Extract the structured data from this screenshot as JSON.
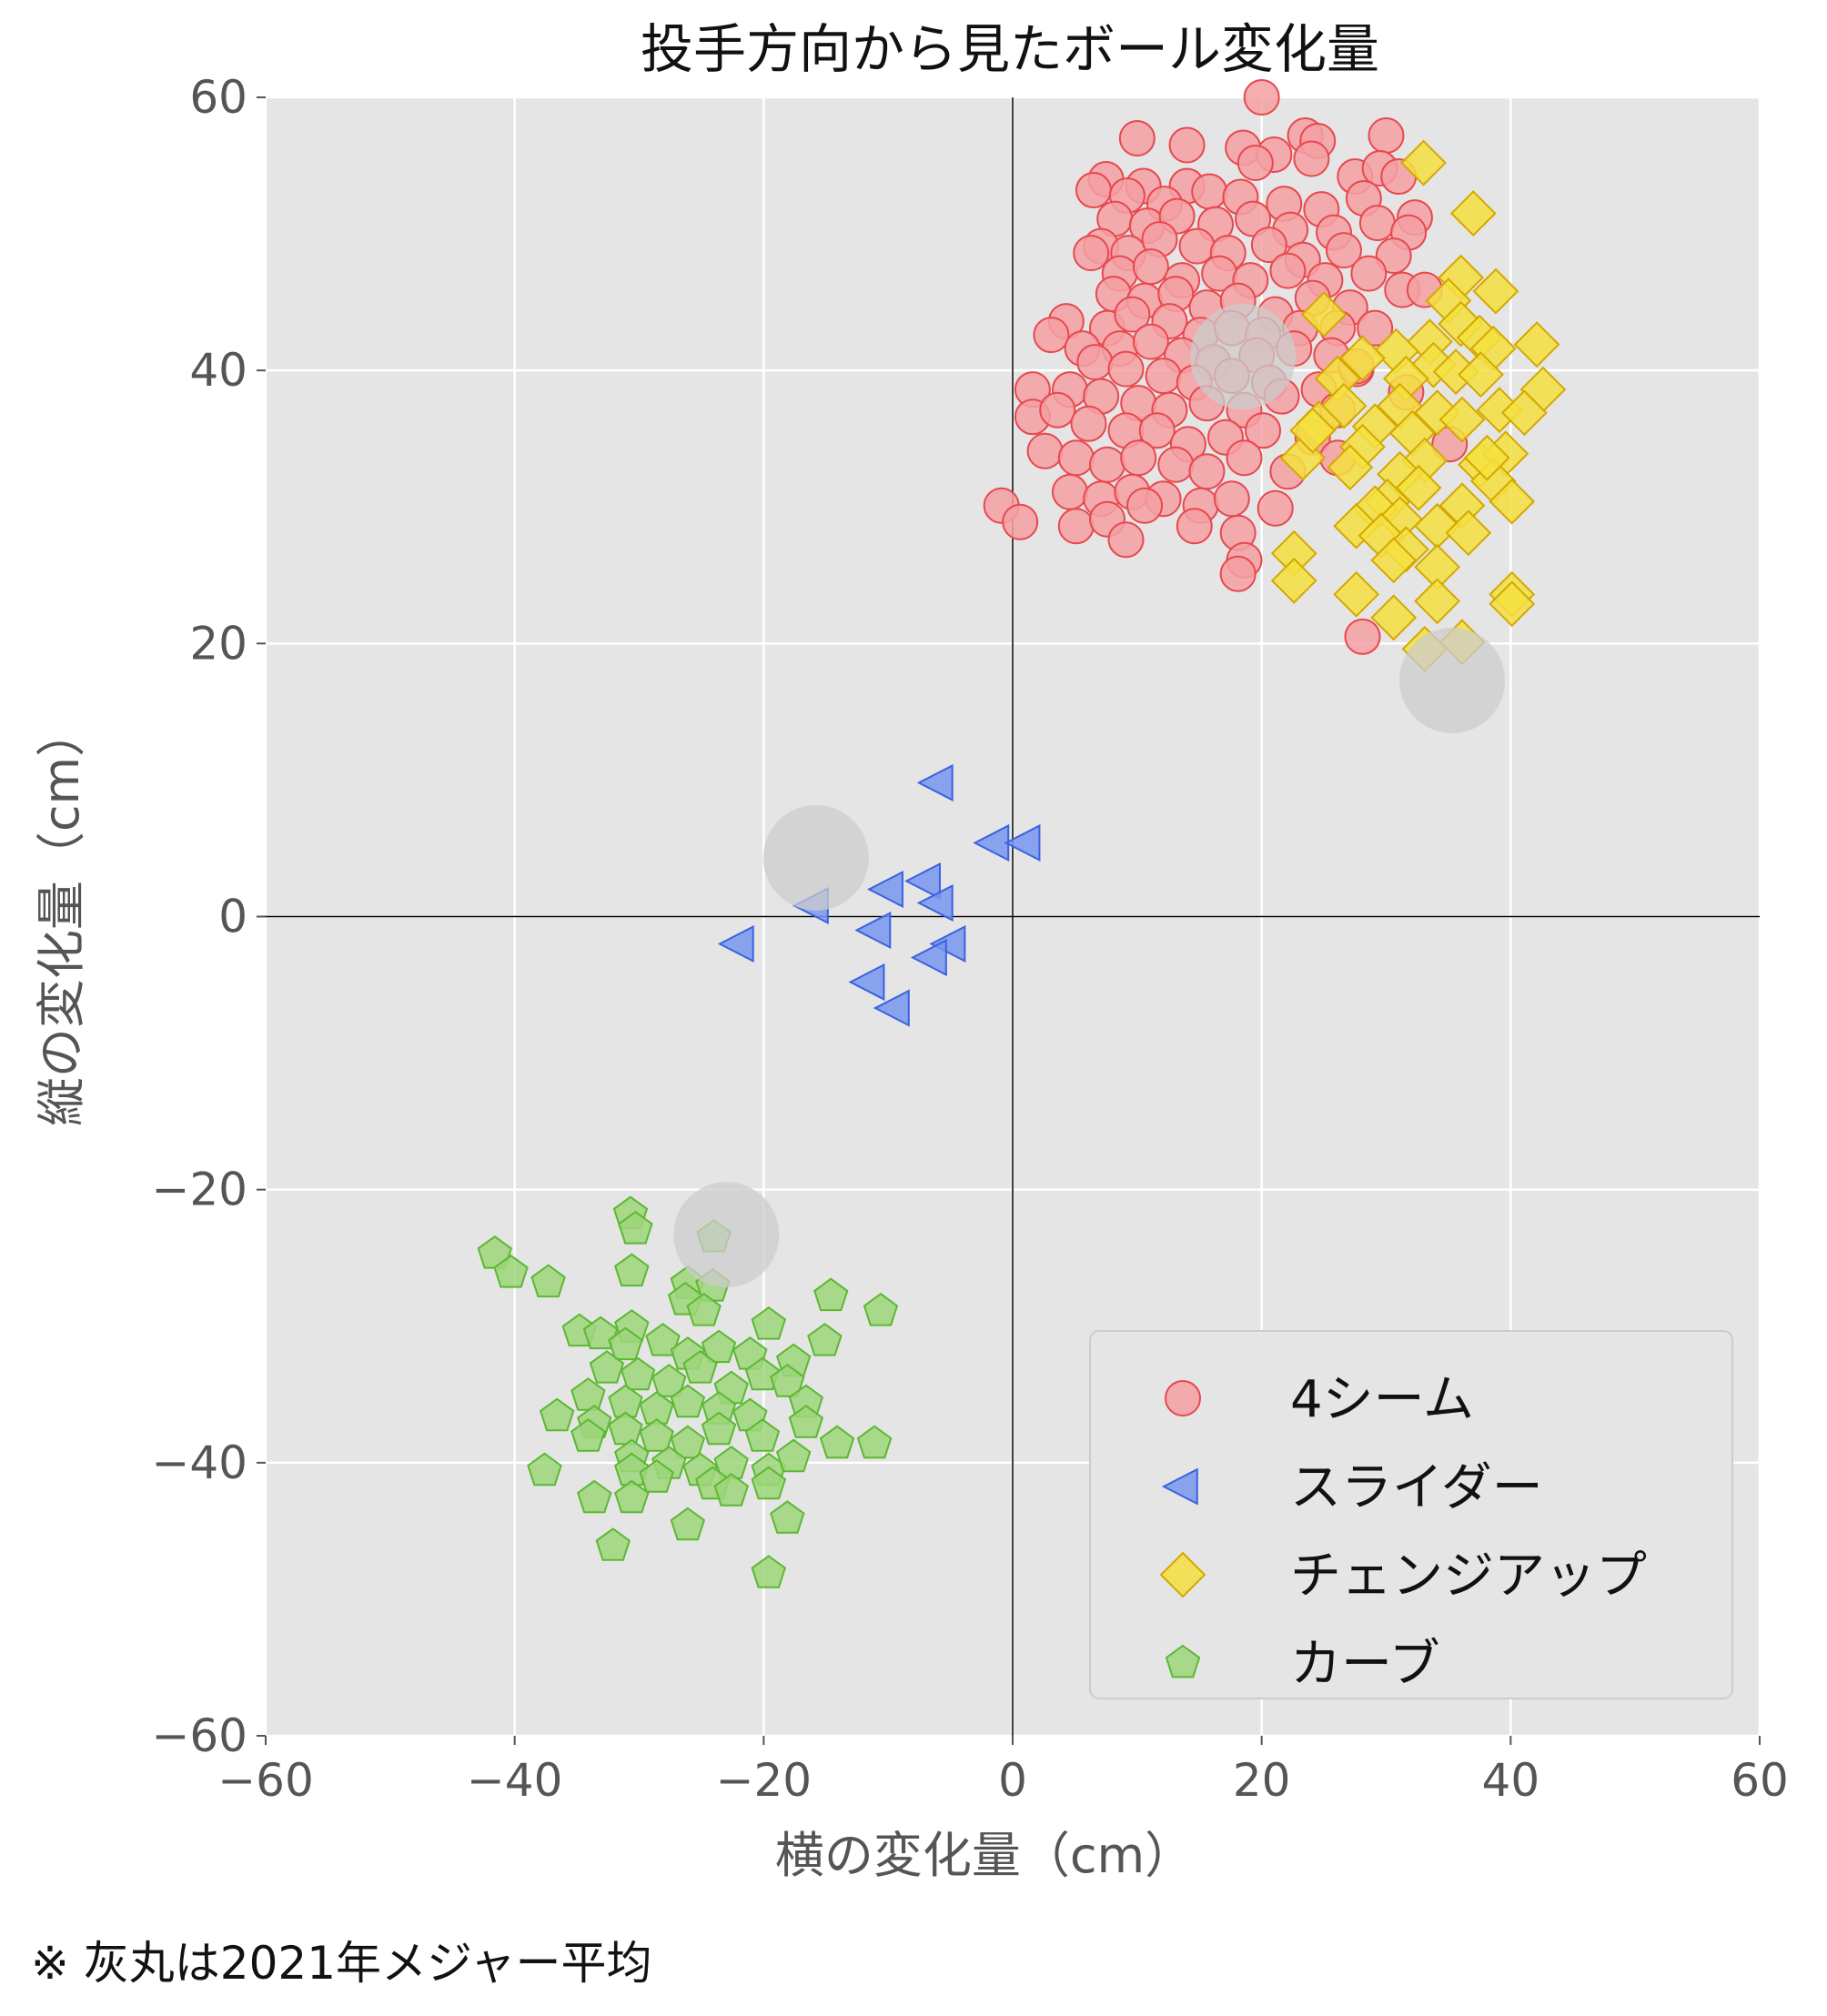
{
  "chart_data": {
    "type": "scatter",
    "title": "投手方向から見たボール変化量",
    "xlabel": "横の変化量（cm）",
    "ylabel": "縦の変化量（cm）",
    "xlim": [
      -60,
      60
    ],
    "ylim": [
      -60,
      60
    ],
    "xticks": [
      -60,
      -40,
      -20,
      0,
      20,
      40,
      60
    ],
    "yticks": [
      -60,
      -40,
      -20,
      0,
      20,
      40,
      60
    ],
    "xtick_labels": [
      "−60",
      "−40",
      "−20",
      "0",
      "20",
      "40",
      "60"
    ],
    "ytick_labels": [
      "−60",
      "−40",
      "−20",
      "0",
      "20",
      "40",
      "60"
    ],
    "grid": true,
    "background": "#e5e5e5",
    "legend_position": "lower-right",
    "series": [
      {
        "name": "4シーム",
        "marker": "circle",
        "fill": "#f4a0a3",
        "stroke": "#e8484e",
        "points": [
          [
            20,
            60
          ],
          [
            10,
            57
          ],
          [
            14,
            56.5
          ],
          [
            18.5,
            56.3
          ],
          [
            21,
            55.8
          ],
          [
            23.5,
            57.2
          ],
          [
            24.5,
            56.8
          ],
          [
            30,
            57.2
          ],
          [
            7.5,
            54
          ],
          [
            10.5,
            53.5
          ],
          [
            14,
            53.5
          ],
          [
            19.5,
            55.2
          ],
          [
            24,
            55.5
          ],
          [
            27.5,
            54.2
          ],
          [
            29.5,
            54.8
          ],
          [
            31,
            54.2
          ],
          [
            6.5,
            53.2
          ],
          [
            9.2,
            52.8
          ],
          [
            12.2,
            52.2
          ],
          [
            15.8,
            53.1
          ],
          [
            18.3,
            52.7
          ],
          [
            21.8,
            52.2
          ],
          [
            24.8,
            51.8
          ],
          [
            28.2,
            52.6
          ],
          [
            32.3,
            51.2
          ],
          [
            8.2,
            51.1
          ],
          [
            10.8,
            50.6
          ],
          [
            13.2,
            51.3
          ],
          [
            16.3,
            50.7
          ],
          [
            19.3,
            51.1
          ],
          [
            22.3,
            50.3
          ],
          [
            25.8,
            50.1
          ],
          [
            29.3,
            50.8
          ],
          [
            31.8,
            50.1
          ],
          [
            7.1,
            49.1
          ],
          [
            9.3,
            48.6
          ],
          [
            11.8,
            49.6
          ],
          [
            14.8,
            49.1
          ],
          [
            17.3,
            48.6
          ],
          [
            20.6,
            49.2
          ],
          [
            23.3,
            48.1
          ],
          [
            26.6,
            48.8
          ],
          [
            30.6,
            48.4
          ],
          [
            6.3,
            48.6
          ],
          [
            8.6,
            47.1
          ],
          [
            11.1,
            47.6
          ],
          [
            13.6,
            46.6
          ],
          [
            16.6,
            47.1
          ],
          [
            19.1,
            46.6
          ],
          [
            22.1,
            47.3
          ],
          [
            25.1,
            46.6
          ],
          [
            28.6,
            47.1
          ],
          [
            8.1,
            45.6
          ],
          [
            10.6,
            45.1
          ],
          [
            13.1,
            45.6
          ],
          [
            15.6,
            44.6
          ],
          [
            18.1,
            45.1
          ],
          [
            21.1,
            44.1
          ],
          [
            24.1,
            45.3
          ],
          [
            27.1,
            44.6
          ],
          [
            31.3,
            45.9
          ],
          [
            4.3,
            43.6
          ],
          [
            7.6,
            43.1
          ],
          [
            9.6,
            44.1
          ],
          [
            12.6,
            43.6
          ],
          [
            15.1,
            42.6
          ],
          [
            17.6,
            43.1
          ],
          [
            20.1,
            42.6
          ],
          [
            23.1,
            43.1
          ],
          [
            26.1,
            43.1
          ],
          [
            3.1,
            42.6
          ],
          [
            5.6,
            41.6
          ],
          [
            8.6,
            41.6
          ],
          [
            11.1,
            42.1
          ],
          [
            13.6,
            41.1
          ],
          [
            16.1,
            40.6
          ],
          [
            19.6,
            41.1
          ],
          [
            22.6,
            41.6
          ],
          [
            25.6,
            41.1
          ],
          [
            6.6,
            40.6
          ],
          [
            9.1,
            40.1
          ],
          [
            12.1,
            39.6
          ],
          [
            14.6,
            39.1
          ],
          [
            17.6,
            39.6
          ],
          [
            20.6,
            39.1
          ],
          [
            24.6,
            38.6
          ],
          [
            27.6,
            40.1
          ],
          [
            31.6,
            38.4
          ],
          [
            1.6,
            38.6
          ],
          [
            4.6,
            38.6
          ],
          [
            7.1,
            38.1
          ],
          [
            10.1,
            37.6
          ],
          [
            12.6,
            37.1
          ],
          [
            15.6,
            37.6
          ],
          [
            18.6,
            37.1
          ],
          [
            21.6,
            38.1
          ],
          [
            26.1,
            37.1
          ],
          [
            1.6,
            36.6
          ],
          [
            3.6,
            37.1
          ],
          [
            6.1,
            36.1
          ],
          [
            9.1,
            35.6
          ],
          [
            11.6,
            35.6
          ],
          [
            14.1,
            34.6
          ],
          [
            17.1,
            35.1
          ],
          [
            20.1,
            35.6
          ],
          [
            24.1,
            35.1
          ],
          [
            2.6,
            34.1
          ],
          [
            5.1,
            33.6
          ],
          [
            7.6,
            33.1
          ],
          [
            10.1,
            33.6
          ],
          [
            13.1,
            33.1
          ],
          [
            15.6,
            32.6
          ],
          [
            18.6,
            33.6
          ],
          [
            22.1,
            32.6
          ],
          [
            35.1,
            34.6
          ],
          [
            4.6,
            31.1
          ],
          [
            7.1,
            30.6
          ],
          [
            9.6,
            31.1
          ],
          [
            12.1,
            30.6
          ],
          [
            15.1,
            30.1
          ],
          [
            17.6,
            30.6
          ],
          [
            21.1,
            29.9
          ],
          [
            -0.9,
            30.1
          ],
          [
            0.6,
            28.9
          ],
          [
            5.1,
            28.6
          ],
          [
            7.6,
            29.1
          ],
          [
            9.1,
            27.6
          ],
          [
            10.6,
            30.1
          ],
          [
            14.6,
            28.6
          ],
          [
            18.1,
            28.1
          ],
          [
            18.6,
            26.1
          ],
          [
            18.1,
            25.1
          ],
          [
            28.1,
            20.5
          ],
          [
            27.6,
            40.3
          ],
          [
            26.1,
            33.6
          ],
          [
            33.1,
            45.9
          ],
          [
            29.1,
            43.1
          ]
        ]
      },
      {
        "name": "スライダー",
        "marker": "triangle-left",
        "fill": "#7896f0",
        "stroke": "#3a62e0",
        "points": [
          [
            -6,
            9.8
          ],
          [
            -1.5,
            5.4
          ],
          [
            1,
            5.4
          ],
          [
            -7,
            2.6
          ],
          [
            -10,
            2
          ],
          [
            -6,
            1
          ],
          [
            -16,
            0.8
          ],
          [
            -11,
            -1
          ],
          [
            -22,
            -2
          ],
          [
            -5,
            -2
          ],
          [
            -6.5,
            -3
          ],
          [
            -11.5,
            -4.8
          ],
          [
            -9.5,
            -6.7
          ]
        ]
      },
      {
        "name": "チェンジアップ",
        "marker": "diamond",
        "fill": "#f5e040",
        "stroke": "#d4a800",
        "points": [
          [
            33,
            55.2
          ],
          [
            37,
            51.5
          ],
          [
            36,
            46.8
          ],
          [
            38.8,
            45.8
          ],
          [
            35,
            45.1
          ],
          [
            25,
            44.1
          ],
          [
            36,
            43.4
          ],
          [
            37.5,
            42.4
          ],
          [
            33.5,
            42.1
          ],
          [
            38.6,
            41.6
          ],
          [
            42.1,
            41.9
          ],
          [
            30.8,
            41.4
          ],
          [
            33.8,
            40.4
          ],
          [
            35.6,
            39.9
          ],
          [
            28.1,
            40.9
          ],
          [
            31.6,
            39.4
          ],
          [
            26.1,
            39.4
          ],
          [
            37.6,
            39.7
          ],
          [
            42.6,
            38.6
          ],
          [
            31.1,
            37.4
          ],
          [
            26.6,
            37.4
          ],
          [
            34.1,
            36.9
          ],
          [
            36.1,
            36.4
          ],
          [
            39.1,
            37.1
          ],
          [
            41.1,
            36.9
          ],
          [
            24.6,
            36.1
          ],
          [
            29.1,
            35.9
          ],
          [
            32.1,
            35.4
          ],
          [
            28.1,
            34.4
          ],
          [
            33.1,
            33.4
          ],
          [
            37.6,
            33.1
          ],
          [
            39.6,
            33.9
          ],
          [
            31.1,
            32.4
          ],
          [
            27.1,
            32.9
          ],
          [
            38.6,
            31.9
          ],
          [
            32.6,
            31.4
          ],
          [
            30.1,
            30.4
          ],
          [
            36.1,
            30.1
          ],
          [
            29.1,
            29.9
          ],
          [
            40.1,
            30.4
          ],
          [
            31.1,
            29.1
          ],
          [
            34.1,
            28.6
          ],
          [
            36.6,
            28.1
          ],
          [
            27.6,
            28.6
          ],
          [
            29.6,
            27.9
          ],
          [
            31.6,
            26.9
          ],
          [
            22.6,
            26.6
          ],
          [
            30.6,
            26.1
          ],
          [
            34.1,
            25.6
          ],
          [
            22.6,
            24.6
          ],
          [
            27.6,
            23.6
          ],
          [
            34.1,
            23.1
          ],
          [
            40.1,
            23.6
          ],
          [
            40.1,
            22.9
          ],
          [
            30.6,
            21.9
          ],
          [
            33.1,
            19.6
          ],
          [
            36.1,
            20.1
          ],
          [
            23.3,
            33.6
          ],
          [
            24.1,
            35.6
          ],
          [
            38.1,
            33.6
          ]
        ]
      },
      {
        "name": "カーブ",
        "marker": "pentagon",
        "fill": "#9ed67a",
        "stroke": "#5cb832",
        "points": [
          [
            -30.7,
            -21.8
          ],
          [
            -30.3,
            -22.9
          ],
          [
            -24,
            -23.5
          ],
          [
            -41.6,
            -24.7
          ],
          [
            -40.3,
            -26.1
          ],
          [
            -30.6,
            -26
          ],
          [
            -37.3,
            -26.8
          ],
          [
            -26.1,
            -26.9
          ],
          [
            -24.1,
            -27.1
          ],
          [
            -26.3,
            -28.1
          ],
          [
            -14.6,
            -27.8
          ],
          [
            -24.8,
            -28.9
          ],
          [
            -10.6,
            -28.9
          ],
          [
            -30.6,
            -30.1
          ],
          [
            -19.6,
            -29.9
          ],
          [
            -34.8,
            -30.4
          ],
          [
            -33.1,
            -30.6
          ],
          [
            -31.1,
            -31.4
          ],
          [
            -28.1,
            -31.1
          ],
          [
            -26.1,
            -32.1
          ],
          [
            -23.6,
            -31.6
          ],
          [
            -21.1,
            -32.1
          ],
          [
            -17.6,
            -32.6
          ],
          [
            -15.1,
            -31.1
          ],
          [
            -32.6,
            -33.1
          ],
          [
            -30.1,
            -33.6
          ],
          [
            -27.6,
            -34.1
          ],
          [
            -25.1,
            -33.1
          ],
          [
            -22.6,
            -34.6
          ],
          [
            -20.1,
            -33.6
          ],
          [
            -18.1,
            -34.1
          ],
          [
            -34.1,
            -35.1
          ],
          [
            -31.1,
            -35.6
          ],
          [
            -28.6,
            -36.1
          ],
          [
            -26.1,
            -35.6
          ],
          [
            -23.6,
            -36.1
          ],
          [
            -21.1,
            -36.6
          ],
          [
            -16.6,
            -35.6
          ],
          [
            -36.6,
            -36.6
          ],
          [
            -33.6,
            -37.1
          ],
          [
            -31.1,
            -37.6
          ],
          [
            -28.6,
            -38.1
          ],
          [
            -26.1,
            -38.6
          ],
          [
            -23.6,
            -37.6
          ],
          [
            -20.1,
            -38.1
          ],
          [
            -16.6,
            -37.1
          ],
          [
            -14.1,
            -38.6
          ],
          [
            -11.1,
            -38.6
          ],
          [
            -34.1,
            -38.1
          ],
          [
            -30.6,
            -39.6
          ],
          [
            -27.6,
            -40.1
          ],
          [
            -25.1,
            -40.6
          ],
          [
            -22.6,
            -40.1
          ],
          [
            -19.6,
            -40.6
          ],
          [
            -17.6,
            -39.6
          ],
          [
            -37.6,
            -40.6
          ],
          [
            -30.6,
            -40.6
          ],
          [
            -28.6,
            -41.1
          ],
          [
            -24.1,
            -41.6
          ],
          [
            -22.6,
            -42.1
          ],
          [
            -19.6,
            -41.6
          ],
          [
            -33.6,
            -42.6
          ],
          [
            -30.6,
            -42.6
          ],
          [
            -26.1,
            -44.6
          ],
          [
            -18.1,
            -44.1
          ],
          [
            -32.1,
            -46.1
          ],
          [
            -19.6,
            -48.1
          ]
        ]
      }
    ],
    "reference_points": {
      "label": "※ 灰丸は2021年メジャー平均",
      "fill": "#cccccc",
      "points": [
        [
          18.5,
          41
        ],
        [
          35.3,
          17.3
        ],
        [
          -15.8,
          4.3
        ],
        [
          -23,
          -23.3
        ]
      ]
    }
  }
}
